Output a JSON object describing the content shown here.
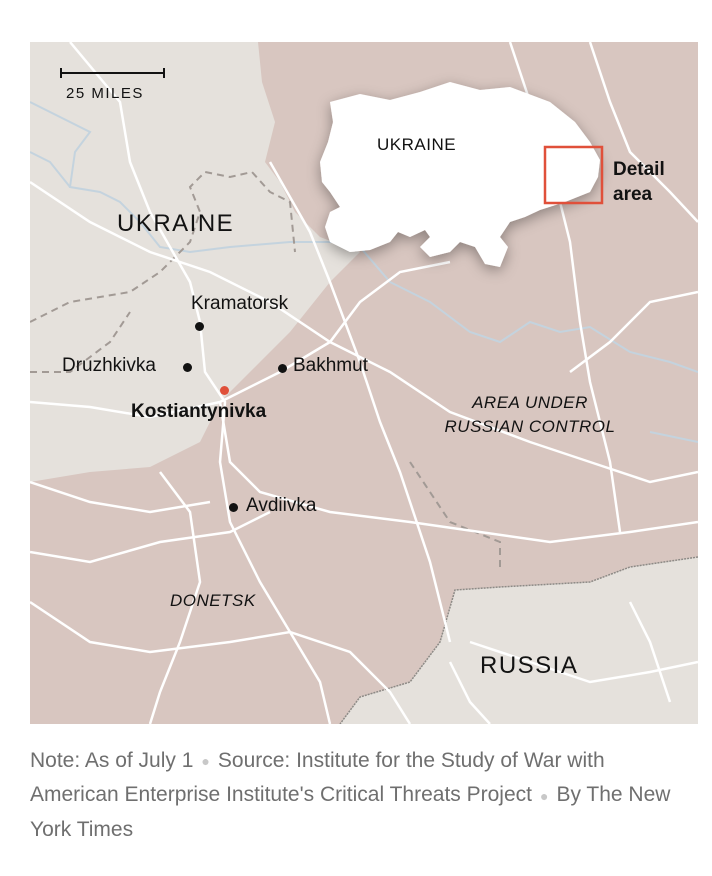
{
  "map": {
    "scale_label": "25 MILES",
    "labels": {
      "ukraine_main": "UKRAINE",
      "russia": "RUSSIA",
      "occupied_area_line1": "AREA UNDER",
      "occupied_area_line2": "RUSSIAN CONTROL",
      "region": "DONETSK"
    },
    "cities": [
      {
        "name": "Kramatorsk",
        "highlight": false
      },
      {
        "name": "Druzhkivka",
        "highlight": false
      },
      {
        "name": "Bakhmut",
        "highlight": false
      },
      {
        "name": "Kostiantynivka",
        "highlight": true
      },
      {
        "name": "Avdiivka",
        "highlight": false
      }
    ],
    "inset": {
      "country_label": "UKRAINE",
      "detail_label_line1": "Detail",
      "detail_label_line2": "area"
    },
    "colors": {
      "ukraine_land": "#e5e1dc",
      "occupied": "#d8c6c0",
      "russia": "#e5e1dc",
      "roads": "#ffffff",
      "rivers": "#c4d3de",
      "highlight_city": "#e0503a",
      "detail_box": "#e0503a"
    }
  },
  "footer": {
    "note": "Note: As of July 1",
    "source": "Source: Institute for the Study of War with American Enterprise Institute's Critical Threats Project",
    "credit": "By The New York Times"
  }
}
